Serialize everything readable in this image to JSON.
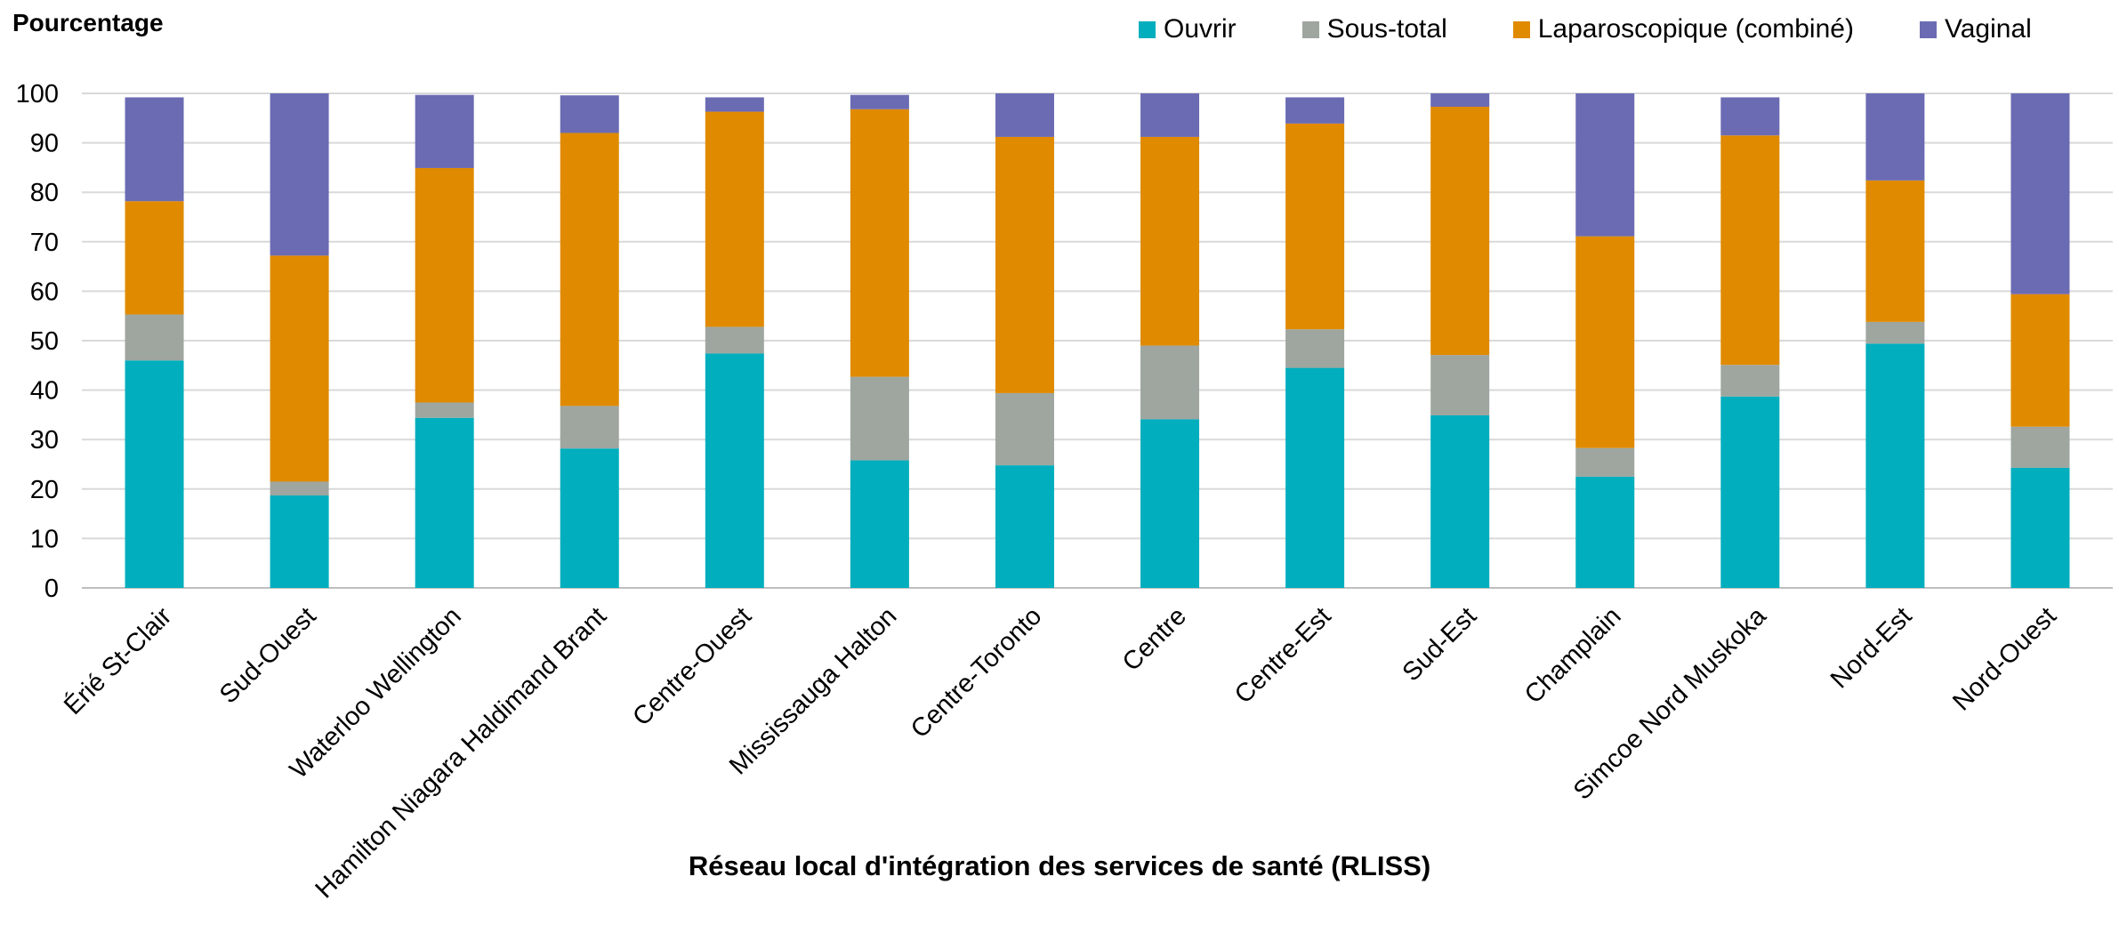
{
  "chart_data": {
    "type": "bar",
    "stacked": true,
    "ylabel": "Pourcentage",
    "xlabel": "Réseau local d'intégration des services de santé (RLISS)",
    "ylim": [
      0,
      100
    ],
    "yticks": [
      0,
      10,
      20,
      30,
      40,
      50,
      60,
      70,
      80,
      90,
      100
    ],
    "grid": true,
    "legend_position": "top-right",
    "categories": [
      "Érié St-Clair",
      "Sud-Ouest",
      "Waterloo Wellington",
      "Hamilton Niagara Haldimand Brant",
      "Centre-Ouest",
      "Mississauga Halton",
      "Centre-Toronto",
      "Centre",
      "Centre-Est",
      "Sud-Est",
      "Champlain",
      "Simcoe Nord Muskoka",
      "Nord-Est",
      "Nord-Ouest"
    ],
    "series": [
      {
        "name": "Ouvrir",
        "color": "#00AEBE",
        "values": [
          46,
          18.7,
          34.4,
          28.2,
          47.4,
          25.8,
          24.8,
          34.1,
          44.5,
          34.9,
          22.5,
          38.7,
          49.4,
          24.3
        ]
      },
      {
        "name": "Sous-total",
        "color": "#9FA69F",
        "values": [
          9.3,
          2.8,
          3.1,
          8.6,
          5.4,
          16.9,
          14.6,
          14.9,
          7.8,
          12.2,
          5.8,
          6.4,
          4.4,
          8.3
        ]
      },
      {
        "name": "Laparoscopique (combiné)",
        "color": "#E08A00",
        "values": [
          22.9,
          45.7,
          47.4,
          55.2,
          43.5,
          54.1,
          51.8,
          42.2,
          41.6,
          50.2,
          42.8,
          46.4,
          28.6,
          26.8
        ]
      },
      {
        "name": "Vaginal",
        "color": "#6B6BB3",
        "values": [
          21,
          32.8,
          14.8,
          7.6,
          2.9,
          2.9,
          8.8,
          8.8,
          5.3,
          2.7,
          28.9,
          7.7,
          17.6,
          40.6
        ]
      }
    ]
  }
}
